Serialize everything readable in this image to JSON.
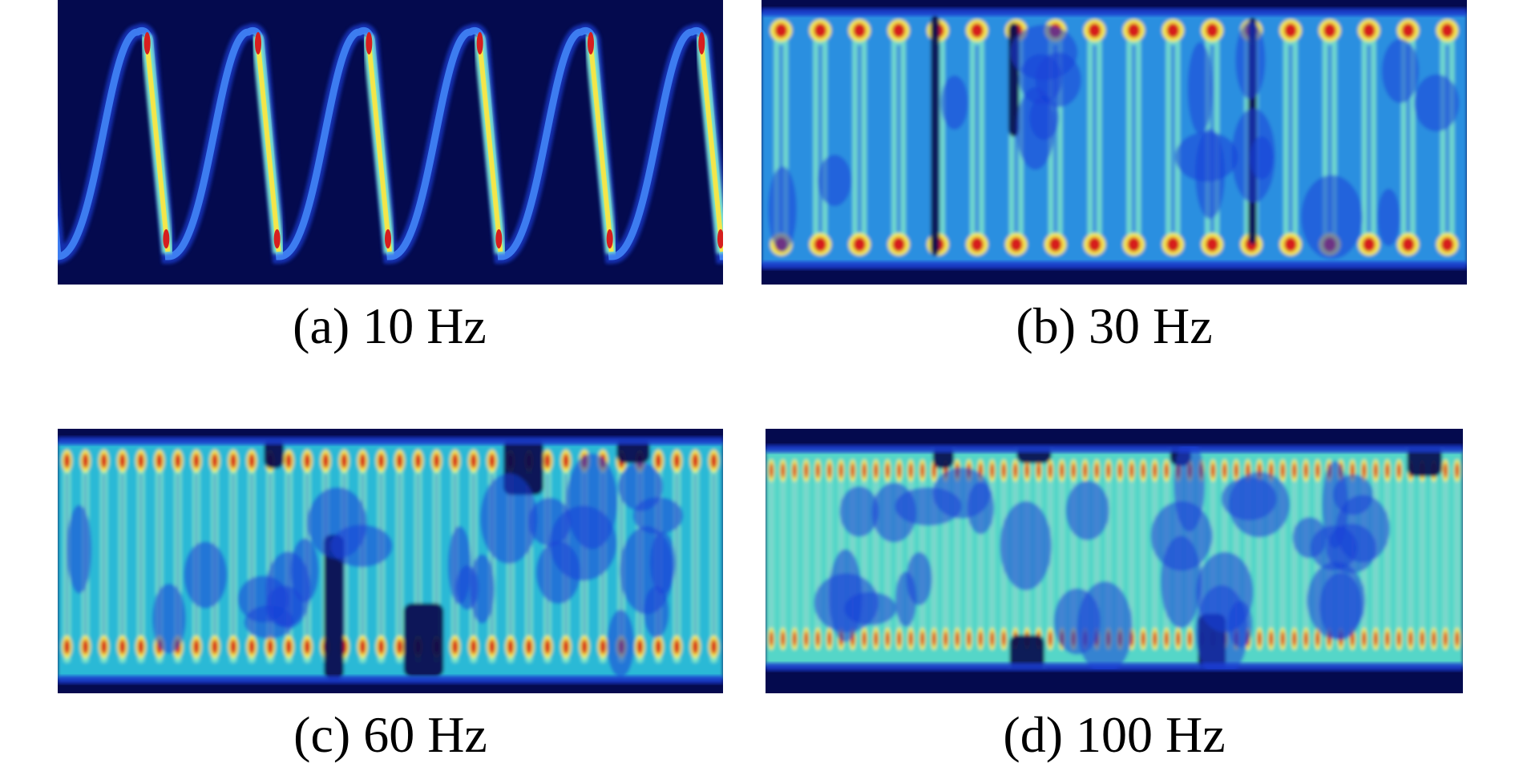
{
  "chart_data": [
    {
      "type": "heatmap",
      "caption": "(a) 10 Hz",
      "frequency_hz": 10,
      "visible_periods": 6,
      "pattern": "single sawtooth-like sine trace",
      "colormap": "jet"
    },
    {
      "type": "heatmap",
      "caption": "(b) 30 Hz",
      "frequency_hz": 30,
      "visible_periods": 18,
      "pattern": "dense oscillation with repeating eye-shaped lobes",
      "colormap": "jet"
    },
    {
      "type": "heatmap",
      "caption": "(c) 60 Hz",
      "frequency_hz": 60,
      "visible_periods": 36,
      "pattern": "high-frequency band with peaks near top and bottom edges",
      "colormap": "jet"
    },
    {
      "type": "heatmap",
      "caption": "(d) 100 Hz",
      "frequency_hz": 100,
      "visible_periods": 60,
      "pattern": "saturated band with intense top and bottom edges",
      "colormap": "jet"
    }
  ],
  "colors": {
    "background": "#040a4e",
    "low": "#1a3fd8",
    "mid": "#7fe7c8",
    "high": "#f4e64a",
    "peak": "#d61e1e"
  }
}
